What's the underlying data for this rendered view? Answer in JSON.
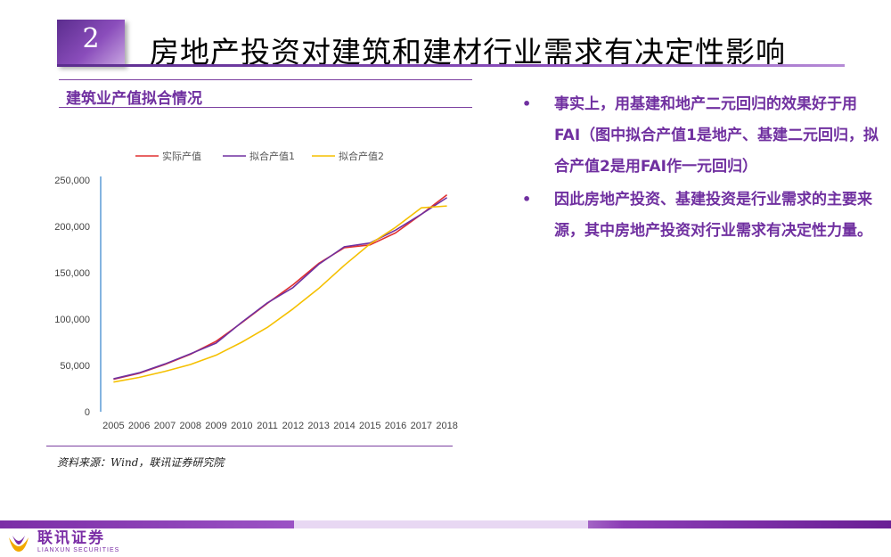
{
  "header": {
    "number": "2",
    "title": "房地产投资对建筑和建材行业需求有决定性影响"
  },
  "chart_data": {
    "type": "line",
    "title": "建筑业产值拟合情况",
    "categories": [
      "2005",
      "2006",
      "2007",
      "2008",
      "2009",
      "2010",
      "2011",
      "2012",
      "2013",
      "2014",
      "2015",
      "2016",
      "2017",
      "2018"
    ],
    "series": [
      {
        "name": "实际产值",
        "color": "#e03030",
        "values": [
          35000,
          41500,
          51000,
          62000,
          76000,
          96000,
          117000,
          137000,
          160000,
          177000,
          180000,
          193000,
          213000,
          234000
        ]
      },
      {
        "name": "拟合产值1",
        "color": "#7030a0",
        "values": [
          35500,
          42000,
          51500,
          62500,
          74000,
          96500,
          117500,
          134000,
          159000,
          178000,
          182000,
          196000,
          213000,
          231000
        ]
      },
      {
        "name": "拟合产值2",
        "color": "#f5c000",
        "values": [
          32000,
          37000,
          43500,
          51000,
          61000,
          75000,
          91000,
          111000,
          133000,
          158000,
          181000,
          199000,
          220000,
          222000
        ]
      }
    ],
    "ylim": [
      0,
      250000
    ],
    "yticks": [
      0,
      50000,
      100000,
      150000,
      200000,
      250000
    ],
    "ytick_labels": [
      "0",
      "50,000",
      "100,000",
      "150,000",
      "200,000",
      "250,000"
    ],
    "legend_position": "top",
    "grid": false
  },
  "source": "资料来源：Wind，联讯证券研究院",
  "bullets": [
    {
      "marker": "•",
      "text": "事实上，用基建和地产二元回归的效果好于用FAI（图中拟合产值1是地产、基建二元回归，拟合产值2是用FAI作一元回归）"
    },
    {
      "marker": "•",
      "text": "因此房地产投资、基建投资是行业需求的主要来源，其中房地产投资对行业需求有决定性力量。"
    }
  ],
  "footer": {
    "logo_cn": "联讯证券",
    "logo_en": "LIANXUN SECURITIES"
  }
}
